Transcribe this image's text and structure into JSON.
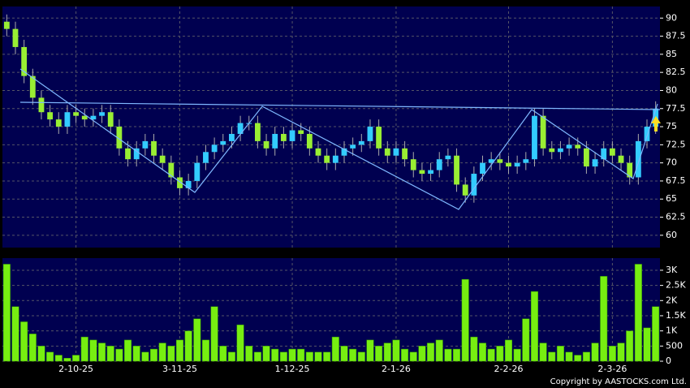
{
  "chart_data": [
    {
      "type": "candlestick",
      "categories": [
        null,
        null,
        null,
        null,
        null,
        null,
        null,
        null,
        "2-10-25",
        null,
        null,
        null,
        null,
        null,
        null,
        null,
        null,
        null,
        null,
        null,
        "3-11-25",
        null,
        null,
        null,
        null,
        null,
        null,
        null,
        null,
        null,
        null,
        null,
        null,
        "1-12-25",
        null,
        null,
        null,
        null,
        null,
        null,
        null,
        null,
        null,
        null,
        null,
        "2-1-26",
        null,
        null,
        null,
        null,
        null,
        null,
        null,
        null,
        null,
        null,
        null,
        null,
        "2-2-26",
        null,
        null,
        null,
        null,
        null,
        null,
        null,
        null,
        null,
        null,
        null,
        "2-3-26",
        null,
        null,
        null,
        null,
        null
      ],
      "open": [
        89.5,
        88.5,
        86,
        82,
        79,
        77,
        76,
        75,
        77,
        76.5,
        76,
        76.5,
        77,
        75,
        72,
        70.5,
        72,
        73,
        71,
        70,
        68,
        66.5,
        67.5,
        70,
        71.5,
        72.5,
        73,
        74,
        75.5,
        75.5,
        73,
        72,
        74,
        73,
        74.5,
        74,
        72,
        71,
        70,
        71,
        72,
        72.5,
        73,
        75,
        72,
        71,
        72,
        70.5,
        69,
        68.5,
        69,
        70.5,
        71,
        67,
        65.5,
        68.5,
        70,
        70.5,
        70,
        69.5,
        70,
        70.5,
        76.5,
        72,
        71.5,
        72,
        72.5,
        72,
        69.5,
        70.5,
        72,
        71,
        70,
        68,
        73,
        75
      ],
      "high": [
        90.5,
        89.5,
        87,
        83,
        80,
        78,
        77,
        78,
        78,
        77.5,
        77.5,
        78,
        78,
        76,
        73,
        73,
        74,
        74,
        72,
        71,
        69,
        68.5,
        71,
        72.5,
        73.5,
        74,
        75,
        76.5,
        76.5,
        76.5,
        74,
        75,
        75,
        75.5,
        75.5,
        75,
        73,
        72,
        72,
        73,
        73.5,
        74,
        76,
        76,
        73,
        73,
        73,
        71.5,
        70,
        70,
        71.5,
        72,
        72,
        68,
        69.5,
        71,
        71.5,
        71.5,
        71,
        71,
        71.5,
        77.5,
        77.5,
        73,
        73,
        73.5,
        73.5,
        73,
        71.5,
        73,
        73,
        72,
        71,
        74,
        76,
        78.5
      ],
      "low": [
        87.5,
        85,
        81,
        78,
        76,
        75,
        74,
        74,
        75.5,
        75,
        75,
        75.5,
        74,
        71,
        69.5,
        69.5,
        71,
        70,
        69,
        67,
        65.5,
        65.5,
        66.5,
        69,
        70.5,
        71.5,
        72,
        73,
        74.5,
        72,
        71,
        71,
        72,
        72,
        73,
        71,
        70,
        69,
        69,
        70,
        71,
        71.5,
        72,
        71,
        70,
        70,
        69.5,
        68,
        67.5,
        67.5,
        68,
        69.5,
        66,
        64.5,
        64.5,
        67.5,
        69,
        69,
        68.5,
        68.5,
        69,
        69.5,
        71,
        70.5,
        70.5,
        71,
        71,
        68.5,
        68.5,
        69.5,
        70,
        69,
        67,
        67,
        72,
        74
      ],
      "close": [
        88.5,
        86,
        82,
        79,
        77,
        76,
        75,
        77,
        76.5,
        76,
        76.5,
        77,
        75,
        72,
        70.5,
        72,
        73,
        71,
        70,
        68,
        66.5,
        67.5,
        70,
        71.5,
        72.5,
        73,
        74,
        75.5,
        75.5,
        73,
        72,
        74,
        73,
        74.5,
        74,
        72,
        71,
        70,
        71,
        72,
        72.5,
        73,
        75,
        72,
        71,
        72,
        70.5,
        69,
        68.5,
        69,
        70.5,
        71,
        67,
        65.5,
        68.5,
        70,
        70.5,
        70,
        69.5,
        70,
        70.5,
        76.5,
        72,
        71.5,
        72,
        72.5,
        72,
        69.5,
        70.5,
        72,
        71,
        70,
        68,
        73,
        75,
        77.5
      ],
      "up_color": "#33ccff",
      "down_color": "#99ee33",
      "ylim": [
        58.3,
        91.6
      ],
      "yticks": [
        60,
        62.5,
        65,
        67.5,
        70,
        72.5,
        75,
        77.5,
        80,
        82.5,
        85,
        87.5,
        90
      ],
      "grid": true
    },
    {
      "type": "bar",
      "values": [
        3200,
        1800,
        1300,
        900,
        500,
        300,
        200,
        100,
        200,
        800,
        700,
        600,
        500,
        400,
        700,
        500,
        300,
        400,
        600,
        500,
        700,
        1000,
        1400,
        700,
        1800,
        500,
        300,
        1200,
        500,
        300,
        500,
        400,
        300,
        400,
        400,
        300,
        300,
        300,
        800,
        500,
        400,
        300,
        700,
        500,
        600,
        700,
        400,
        300,
        500,
        600,
        700,
        400,
        400,
        2700,
        800,
        600,
        400,
        500,
        700,
        400,
        1400,
        2300,
        600,
        300,
        500,
        300,
        200,
        300,
        600,
        2800,
        500,
        600,
        1000,
        3200,
        1100,
        1800
      ],
      "color": "#77ee11",
      "ylim": [
        0,
        3400
      ],
      "yticks": [
        0,
        500,
        {
          "value": 1000,
          "label": "1K"
        },
        {
          "value": 1500,
          "label": "1.5K"
        },
        {
          "value": 2000,
          "label": "2K"
        },
        {
          "value": 2500,
          "label": "2.5K"
        },
        {
          "value": 3000,
          "label": "3K"
        }
      ],
      "grid": true
    }
  ],
  "copyright": "Copyright by AASTOCKS.com Ltd."
}
